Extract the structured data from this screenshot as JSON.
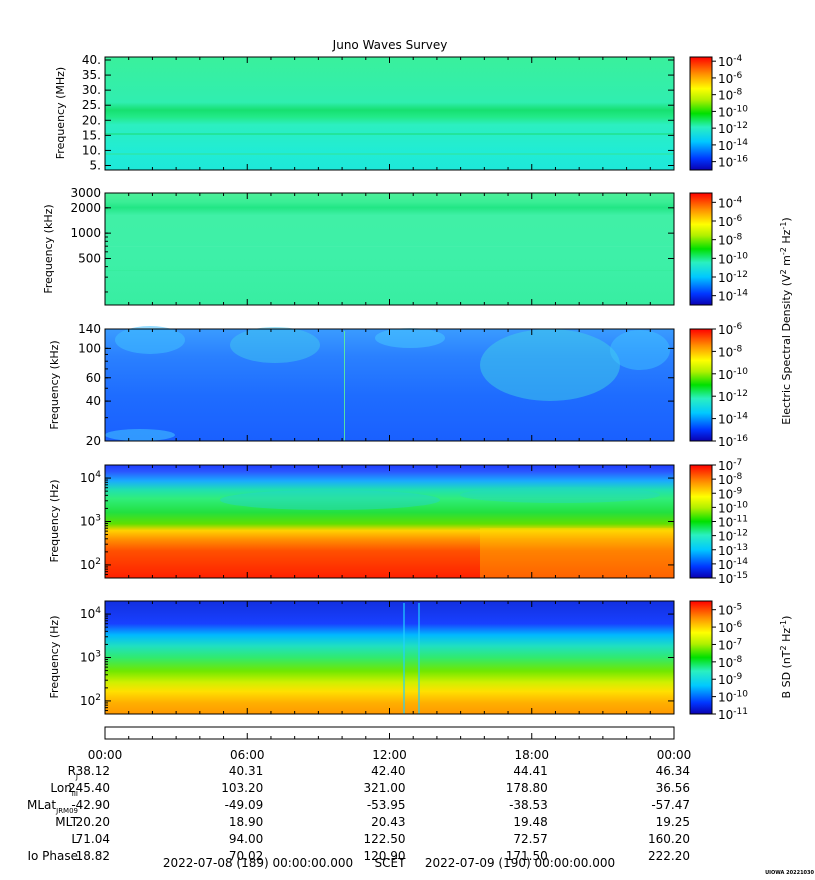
{
  "title": "Juno Waves Survey",
  "corner_tag": "UIOWA 20221030",
  "colors": {
    "frame": "#000000",
    "background": "#ffffff"
  },
  "chart_data": [
    {
      "type": "heatmap",
      "panel": "p1",
      "ylabel": "Frequency (MHz)",
      "y_ticks": [
        "40.",
        "35.",
        "30.",
        "25.",
        "20.",
        "15.",
        "10.",
        "5."
      ],
      "y_values": [
        40,
        35,
        30,
        25,
        20,
        15,
        10,
        5
      ],
      "yscale": "linear",
      "ylim": [
        3.5,
        41
      ],
      "colorbar": {
        "label": "",
        "ticks": [
          {
            "mantissa": "10",
            "exp": "-4"
          },
          {
            "mantissa": "10",
            "exp": "-6"
          },
          {
            "mantissa": "10",
            "exp": "-8"
          },
          {
            "mantissa": "10",
            "exp": "-10"
          },
          {
            "mantissa": "10",
            "exp": "-12"
          },
          {
            "mantissa": "10",
            "exp": "-14"
          },
          {
            "mantissa": "10",
            "exp": "-16"
          }
        ],
        "range_exp": [
          -17,
          -3.5
        ]
      },
      "dominant_color": "#2ef0a8"
    },
    {
      "type": "heatmap",
      "panel": "p2",
      "ylabel": "Frequency (kHz)",
      "y_ticks": [
        "3000",
        "2000",
        "1000",
        "500"
      ],
      "y_values": [
        3000,
        2000,
        1000,
        500
      ],
      "yscale": "log",
      "ylim": [
        140,
        3000
      ],
      "colorbar": {
        "label": "",
        "ticks": [
          {
            "mantissa": "10",
            "exp": "-4"
          },
          {
            "mantissa": "10",
            "exp": "-6"
          },
          {
            "mantissa": "10",
            "exp": "-8"
          },
          {
            "mantissa": "10",
            "exp": "-10"
          },
          {
            "mantissa": "10",
            "exp": "-12"
          },
          {
            "mantissa": "10",
            "exp": "-14"
          }
        ],
        "range_exp": [
          -15,
          -3
        ]
      },
      "dominant_color": "#40ee9a"
    },
    {
      "type": "heatmap",
      "panel": "p3",
      "ylabel": "Frequency (kHz)",
      "y_ticks": [
        "140",
        "100",
        "60",
        "40",
        "20"
      ],
      "y_values": [
        140,
        100,
        60,
        40,
        20
      ],
      "yscale": "log",
      "ylim": [
        20,
        140
      ],
      "colorbar": {
        "label": "Electric Spectral Density (V2 m-2 Hz-1)",
        "ticks": [
          {
            "mantissa": "10",
            "exp": "-6"
          },
          {
            "mantissa": "10",
            "exp": "-8"
          },
          {
            "mantissa": "10",
            "exp": "-10"
          },
          {
            "mantissa": "10",
            "exp": "-12"
          },
          {
            "mantissa": "10",
            "exp": "-14"
          },
          {
            "mantissa": "10",
            "exp": "-16"
          }
        ],
        "range_exp": [
          -16,
          -6
        ]
      },
      "dominant_color": "#1f74ff"
    },
    {
      "type": "heatmap",
      "panel": "p4",
      "ylabel": "Frequency (Hz)",
      "y_ticks": [
        {
          "mantissa": "10",
          "exp": "4",
          "value": 10000
        },
        {
          "mantissa": "10",
          "exp": "3",
          "value": 1000
        },
        {
          "mantissa": "10",
          "exp": "2",
          "value": 100
        }
      ],
      "yscale": "log",
      "ylim": [
        50,
        20000
      ],
      "colorbar": {
        "label": "",
        "ticks": [
          {
            "mantissa": "10",
            "exp": "-7"
          },
          {
            "mantissa": "10",
            "exp": "-8"
          },
          {
            "mantissa": "10",
            "exp": "-9"
          },
          {
            "mantissa": "10",
            "exp": "-10"
          },
          {
            "mantissa": "10",
            "exp": "-11"
          },
          {
            "mantissa": "10",
            "exp": "-12"
          },
          {
            "mantissa": "10",
            "exp": "-13"
          },
          {
            "mantissa": "10",
            "exp": "-14"
          },
          {
            "mantissa": "10",
            "exp": "-15"
          }
        ],
        "range_exp": [
          -15,
          -7
        ]
      }
    },
    {
      "type": "heatmap",
      "panel": "p5",
      "ylabel": "Frequency (Hz)",
      "y_ticks": [
        {
          "mantissa": "10",
          "exp": "4",
          "value": 10000
        },
        {
          "mantissa": "10",
          "exp": "3",
          "value": 1000
        },
        {
          "mantissa": "10",
          "exp": "2",
          "value": 100
        }
      ],
      "yscale": "log",
      "ylim": [
        50,
        20000
      ],
      "colorbar": {
        "label": "B SD (nT2 Hz-1)",
        "ticks": [
          {
            "mantissa": "10",
            "exp": "-5"
          },
          {
            "mantissa": "10",
            "exp": "-6"
          },
          {
            "mantissa": "10",
            "exp": "-7"
          },
          {
            "mantissa": "10",
            "exp": "-8"
          },
          {
            "mantissa": "10",
            "exp": "-9"
          },
          {
            "mantissa": "10",
            "exp": "-10"
          },
          {
            "mantissa": "10",
            "exp": "-11"
          }
        ],
        "range_exp": [
          -11,
          -4.5
        ]
      }
    }
  ],
  "time_axis": {
    "ticks": [
      "00:00",
      "06:00",
      "12:00",
      "18:00",
      "00:00"
    ],
    "rows": [
      {
        "label": "R",
        "sub": "J",
        "values": [
          "38.12",
          "40.31",
          "42.40",
          "44.41",
          "46.34"
        ]
      },
      {
        "label": "Lon",
        "sub": "III",
        "values": [
          "245.40",
          "103.20",
          "321.00",
          "178.80",
          "36.56"
        ]
      },
      {
        "label": "MLat",
        "sub": "JRM09",
        "values": [
          "-42.90",
          "-49.09",
          "-53.95",
          "-38.53",
          "-57.47"
        ]
      },
      {
        "label": "MLT",
        "sub": "",
        "values": [
          "20.20",
          "18.90",
          "20.43",
          "19.48",
          "19.25"
        ]
      },
      {
        "label": "L",
        "sub": "",
        "values": [
          "71.04",
          "94.00",
          "122.50",
          "72.57",
          "160.20"
        ]
      },
      {
        "label": "Io Phase",
        "sub": "",
        "values": [
          "18.82",
          "70.02",
          "120.90",
          "171.50",
          "222.20"
        ]
      }
    ],
    "start": "2022-07-08 (189) 00:00:00.000",
    "scet": "SCET",
    "end": "2022-07-09 (190) 00:00:00.000"
  }
}
